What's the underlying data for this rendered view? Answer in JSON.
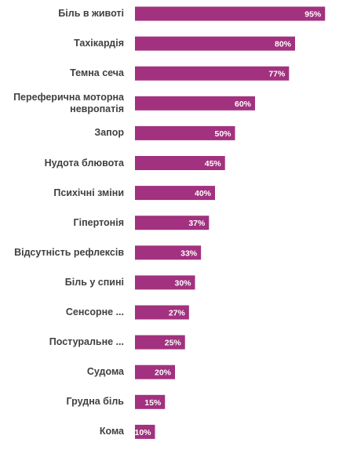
{
  "chart_data": {
    "type": "bar",
    "orientation": "horizontal",
    "categories": [
      "Біль в животі",
      "Тахікардія",
      "Темна сеча",
      "Переферична моторна невропатія",
      "Запор",
      "Нудота блювота",
      "Психічні зміни",
      "Гіпертонія",
      "Відсутність рефлексів",
      "Біль у спині",
      "Сенсорне ...",
      "Постуральне ...",
      "Судома",
      "Грудна біль",
      "Кома"
    ],
    "values": [
      95,
      80,
      77,
      60,
      50,
      45,
      40,
      37,
      33,
      30,
      27,
      25,
      20,
      15,
      10
    ],
    "data_labels": [
      "95%",
      "80%",
      "77%",
      "60%",
      "50%",
      "45%",
      "40%",
      "37%",
      "33%",
      "30%",
      "27%",
      "25%",
      "20%",
      "15%",
      "10%"
    ],
    "xlim": [
      0,
      100
    ],
    "grid": false,
    "legend": "none",
    "bar_color": "#A2317F",
    "label_color": "#404040",
    "value_label_color": "#ffffff"
  }
}
